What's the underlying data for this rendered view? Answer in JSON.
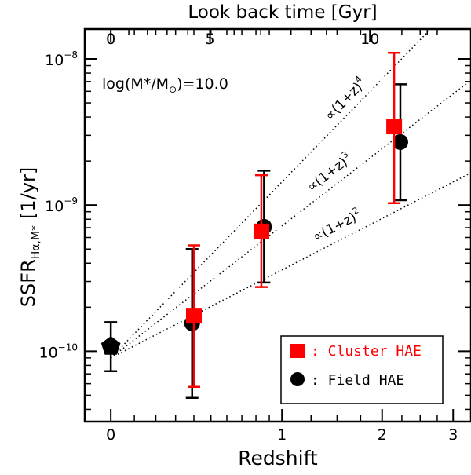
{
  "chart_data": {
    "type": "scatter",
    "title": "",
    "xlabel": "Redshift",
    "ylabel_main": "SSFR",
    "ylabel_sub": "Hα,M*",
    "ylabel_unit": "[1/yr]",
    "top_xlabel": "Look back time [Gyr]",
    "x_scale": "log(1+z)",
    "y_scale": "log",
    "xlim": [
      -0.1,
      3.3
    ],
    "ylim": [
      3.3e-11,
      1.6e-08
    ],
    "x_ticks": [
      {
        "value": 0,
        "label": "0"
      },
      {
        "value": 1,
        "label": "1"
      },
      {
        "value": 2,
        "label": "2"
      },
      {
        "value": 3,
        "label": "3"
      }
    ],
    "top_ticks": [
      {
        "value": 0,
        "label": "0"
      },
      {
        "value": 5,
        "label": "5"
      },
      {
        "value": 10,
        "label": "10"
      }
    ],
    "y_ticks": [
      {
        "value": 1e-10,
        "base": "10",
        "exp": "−10"
      },
      {
        "value": 1e-09,
        "base": "10",
        "exp": "−9"
      },
      {
        "value": 1e-08,
        "base": "10",
        "exp": "−8"
      }
    ],
    "annotation": {
      "prefix": "log(M*/M",
      "sub": "⊙",
      "suffix": ")=10.0"
    },
    "reference_point": {
      "x": 0.0,
      "y": 1.08e-10,
      "err_low": 7.3e-11,
      "err_high": 1.58e-10
    },
    "series": [
      {
        "name": ": Cluster HAE",
        "marker": "square",
        "color": "#ff0000",
        "points": [
          {
            "x": 0.4,
            "y": 1.75e-10,
            "err_low": 5.7e-11,
            "err_high": 5.3e-10
          },
          {
            "x": 0.84,
            "y": 6.6e-10,
            "err_low": 2.75e-10,
            "err_high": 1.6e-09
          },
          {
            "x": 2.15,
            "y": 3.45e-09,
            "err_low": 1.03e-09,
            "err_high": 1.1e-08
          }
        ]
      },
      {
        "name": ": Field HAE",
        "marker": "circle",
        "color": "#000000",
        "points": [
          {
            "x": 0.39,
            "y": 1.55e-10,
            "err_low": 4.8e-11,
            "err_high": 5e-10
          },
          {
            "x": 0.86,
            "y": 7.1e-10,
            "err_low": 2.95e-10,
            "err_high": 1.72e-09
          },
          {
            "x": 2.23,
            "y": 2.7e-09,
            "err_low": 1.08e-09,
            "err_high": 6.7e-09
          }
        ]
      }
    ],
    "trend_lines": [
      {
        "power": 4,
        "base": "∝(1+z)",
        "exp": "4",
        "label_z": 1.62
      },
      {
        "power": 3,
        "base": "∝(1+z)",
        "exp": "3",
        "label_z": 1.45
      },
      {
        "power": 2,
        "base": "∝(1+z)",
        "exp": "2",
        "label_z": 1.52
      }
    ],
    "trend_norm": 9e-11,
    "legend_position": "bottom-right",
    "grid": false
  }
}
